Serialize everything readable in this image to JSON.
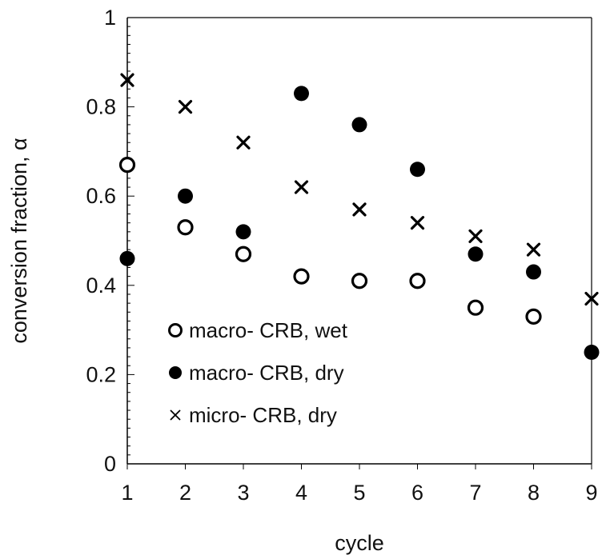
{
  "chart_data": {
    "type": "scatter",
    "title": "",
    "xlabel": "cycle",
    "ylabel": "conversion fraction, α",
    "xlim": [
      1,
      9
    ],
    "ylim": [
      0,
      1
    ],
    "xticks": [
      "1",
      "2",
      "3",
      "4",
      "5",
      "6",
      "7",
      "8",
      "9"
    ],
    "yticks": [
      "0",
      "0.2",
      "0.4",
      "0.6",
      "0.8",
      "1"
    ],
    "grid": false,
    "legend_position": "bottom-left",
    "series": [
      {
        "name": "macro- CRB, wet",
        "marker": "open-circle",
        "color": "#000000",
        "x": [
          1,
          2,
          3,
          4,
          5,
          6,
          7,
          8
        ],
        "y": [
          0.67,
          0.53,
          0.47,
          0.42,
          0.41,
          0.41,
          0.35,
          0.33
        ]
      },
      {
        "name": "macro- CRB, dry",
        "marker": "filled-circle",
        "color": "#000000",
        "x": [
          1,
          2,
          3,
          4,
          5,
          6,
          7,
          8,
          9
        ],
        "y": [
          0.46,
          0.6,
          0.52,
          0.83,
          0.76,
          0.66,
          0.47,
          0.43,
          0.25
        ]
      },
      {
        "name": "micro- CRB, dry",
        "marker": "cross",
        "color": "#000000",
        "x": [
          1,
          2,
          3,
          4,
          5,
          6,
          7,
          8,
          9
        ],
        "y": [
          0.86,
          0.8,
          0.72,
          0.62,
          0.57,
          0.54,
          0.51,
          0.48,
          0.37
        ]
      }
    ]
  }
}
